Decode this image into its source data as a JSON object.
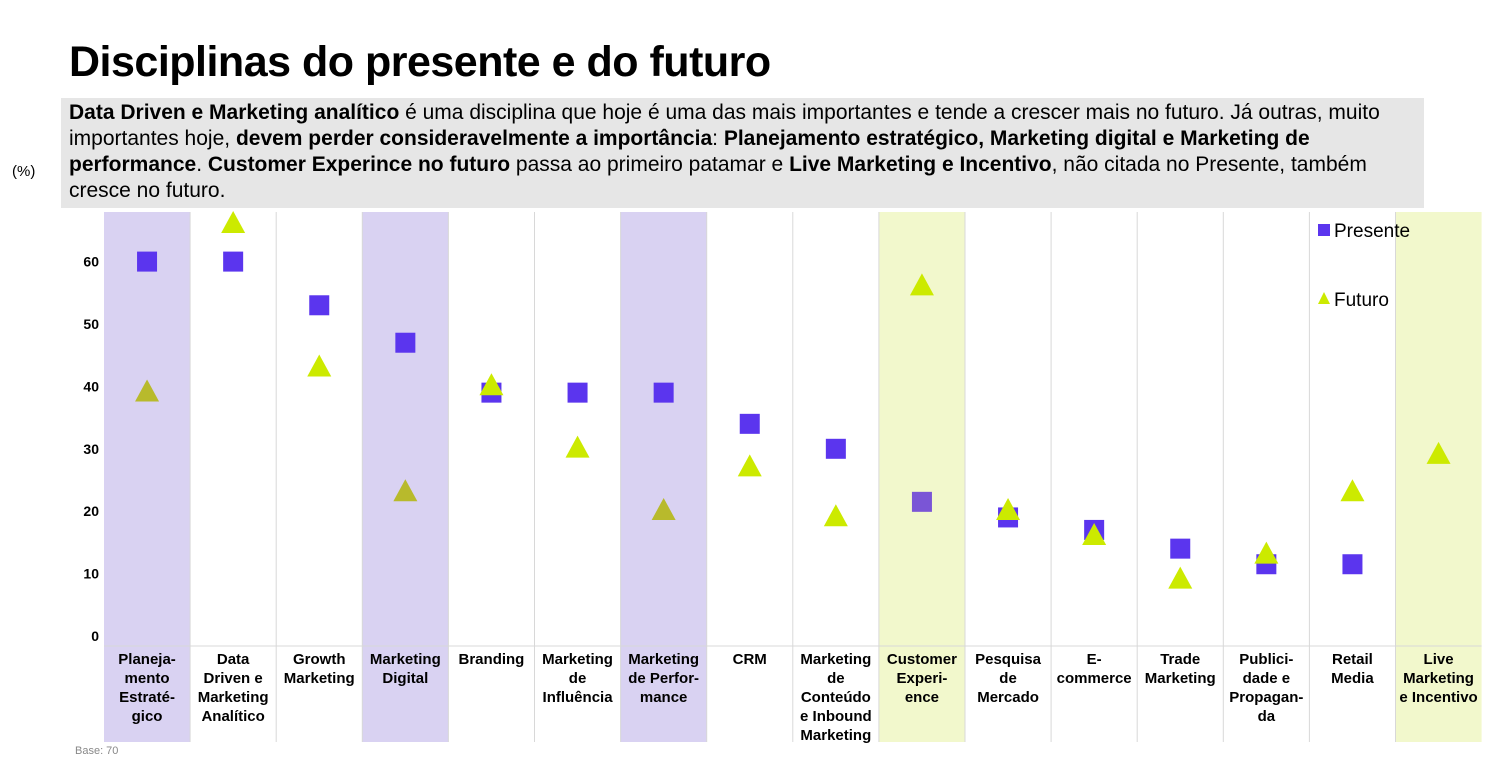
{
  "title": "Disciplinas do presente e do futuro",
  "description": [
    {
      "text": "Data Driven e Marketing analítico",
      "bold": true
    },
    {
      "text": " é uma disciplina que hoje é uma das mais importantes e tende a crescer mais no futuro. Já outras, muito importantes hoje, ",
      "bold": false
    },
    {
      "text": "devem perder consideravelmente a importância",
      "bold": true
    },
    {
      "text": ": ",
      "bold": false
    },
    {
      "text": "Planejamento estratégico, Marketing digital e Marketing de performance",
      "bold": true
    },
    {
      "text": ". ",
      "bold": false
    },
    {
      "text": "Customer Experince no futuro",
      "bold": true
    },
    {
      "text": " passa ao primeiro patamar e ",
      "bold": false
    },
    {
      "text": "Live Marketing e Incentivo",
      "bold": true
    },
    {
      "text": ", não citada no Presente, também cresce no futuro.",
      "bold": false
    }
  ],
  "unit_label": "(%)",
  "base_label": "Base: 70",
  "colors": {
    "presente": "#5b35ee",
    "futuro": "#ccea00",
    "highlight_purple": "#d9d2f2",
    "highlight_green": "#f2f8cc"
  },
  "chart_data": {
    "type": "scatter",
    "categories": [
      "Planeja-\nmento\nEstraté-\ngico",
      "Data\nDriven e\nMarketing\nAnalítico",
      "Growth\nMarketing",
      "Marketing\nDigital",
      "Branding",
      "Marketing\nde\nInfluência",
      "Marketing\nde Perfor-\nmance",
      "CRM",
      "Marketing\nde\nConteúdo\ne Inbound\nMarketing",
      "Customer\nExperi-\nence",
      "Pesquisa\nde\nMercado",
      "E-\ncommerce",
      "Trade\nMarketing",
      "Publici-\ndade e\nPropagan-\nda",
      "Retail\nMedia",
      "Live\nMarketing\ne Incentivo"
    ],
    "highlight": [
      "purple",
      "none",
      "none",
      "purple",
      "none",
      "none",
      "purple",
      "none",
      "none",
      "green",
      "none",
      "none",
      "none",
      "none",
      "none",
      "green"
    ],
    "series": [
      {
        "name": "Presente",
        "marker": "square",
        "values": [
          60,
          60,
          53,
          47,
          39,
          39,
          39,
          34,
          30,
          21.5,
          19,
          17,
          14,
          11.5,
          11.5,
          null
        ]
      },
      {
        "name": "Futuro",
        "marker": "triangle",
        "values": [
          39,
          66,
          43,
          23,
          40,
          30,
          20,
          27,
          19,
          56,
          20,
          16,
          9,
          13,
          23,
          29
        ]
      }
    ],
    "y_ticks": [
      0,
      10,
      20,
      30,
      40,
      50,
      60
    ],
    "ylim": [
      0,
      70
    ],
    "legend_position": "top-right"
  }
}
